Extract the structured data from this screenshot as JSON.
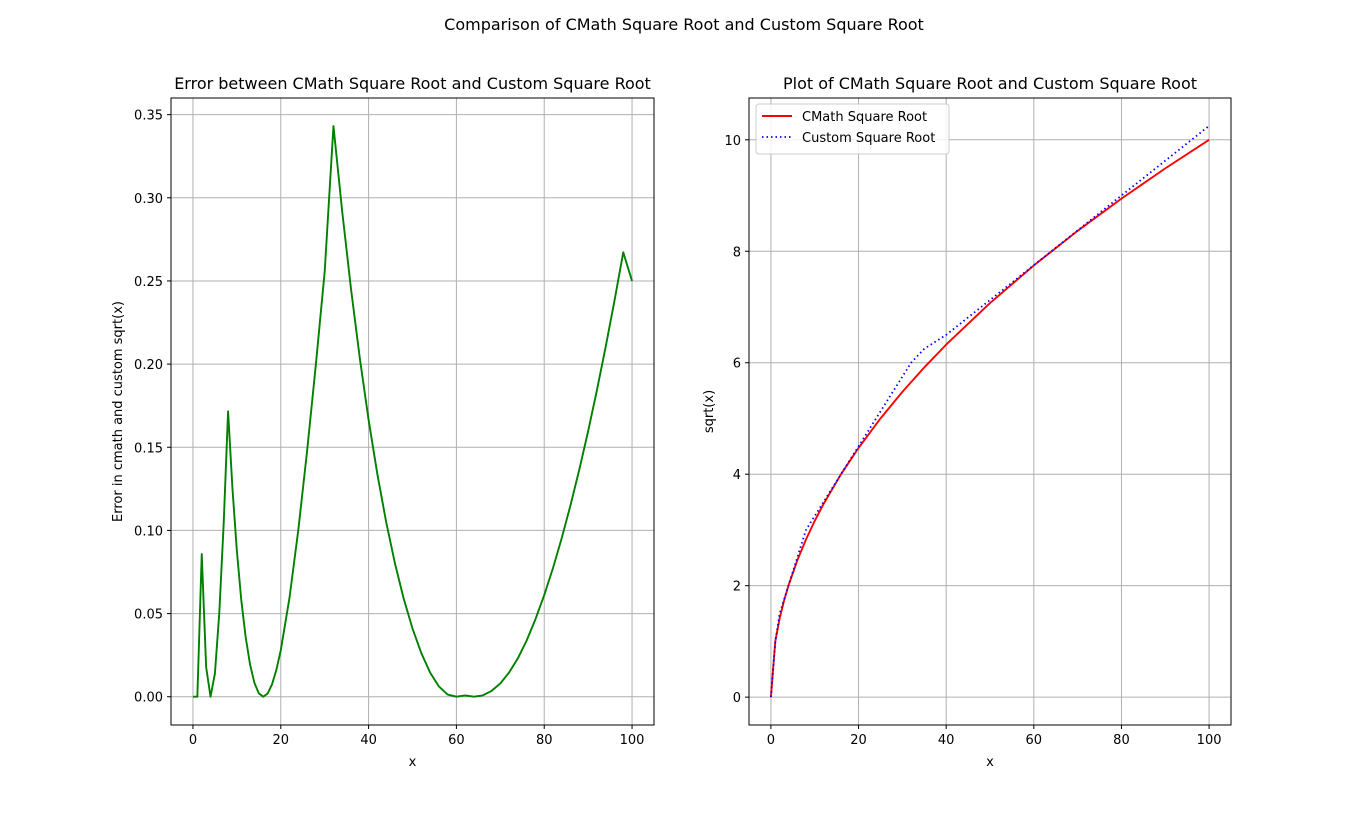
{
  "figure": {
    "suptitle": "Comparison of CMath Square Root and Custom Square Root"
  },
  "chart_data": [
    {
      "type": "line",
      "title": "Error between CMath Square Root and Custom Square Root",
      "xlabel": "x",
      "ylabel": "Error in cmath and custom sqrt(x)",
      "xlim": [
        -5,
        105
      ],
      "ylim": [
        -0.017,
        0.36
      ],
      "xticks": [
        "0",
        "20",
        "40",
        "60",
        "80",
        "100"
      ],
      "xtick_values": [
        0,
        20,
        40,
        60,
        80,
        100
      ],
      "yticks": [
        "0.00",
        "0.05",
        "0.10",
        "0.15",
        "0.20",
        "0.25",
        "0.30",
        "0.35"
      ],
      "ytick_values": [
        0,
        0.05,
        0.1,
        0.15,
        0.2,
        0.25,
        0.3,
        0.35
      ],
      "grid": true,
      "series": [
        {
          "color": "#008000",
          "style": "solid",
          "x": [
            0,
            1,
            2,
            3,
            4,
            5,
            6,
            7,
            8,
            9,
            10,
            11,
            12,
            13,
            14,
            15,
            16,
            17,
            18,
            19,
            20,
            22,
            24,
            26,
            28,
            30,
            32,
            34,
            36,
            38,
            40,
            42,
            44,
            46,
            48,
            50,
            52,
            54,
            56,
            58,
            60,
            62,
            64,
            66,
            68,
            70,
            72,
            74,
            76,
            78,
            80,
            82,
            84,
            86,
            88,
            90,
            92,
            94,
            96,
            98,
            100
          ],
          "y": [
            0,
            0,
            0.0858,
            0.0179,
            0,
            0.0139,
            0.0505,
            0.1042,
            0.1716,
            0.125,
            0.0877,
            0.0583,
            0.0359,
            0.0194,
            0.0083,
            0.002,
            0,
            0.0019,
            0.0074,
            0.0162,
            0.0279,
            0.0597,
            0.1005,
            0.1479,
            0.2,
            0.2555,
            0.3431,
            0.2915,
            0.2451,
            0.2035,
            0.1665,
            0.1338,
            0.1051,
            0.0802,
            0.0589,
            0.041,
            0.0263,
            0.0146,
            0.0062,
            0.0013,
            0.0,
            0.0008,
            0,
            0.0008,
            0.0035,
            0.008,
            0.0146,
            0.0231,
            0.0338,
            0.0466,
            0.0611,
            0.0774,
            0.0955,
            0.1153,
            0.1367,
            0.1597,
            0.1843,
            0.2105,
            0.2381,
            0.2672,
            0.25
          ]
        }
      ]
    },
    {
      "type": "line",
      "title": "Plot of CMath Square Root and Custom Square Root",
      "xlabel": "x",
      "ylabel": "sqrt(x)",
      "xlim": [
        -5,
        105
      ],
      "ylim": [
        -0.5,
        10.75
      ],
      "xticks": [
        "0",
        "20",
        "40",
        "60",
        "80",
        "100"
      ],
      "xtick_values": [
        0,
        20,
        40,
        60,
        80,
        100
      ],
      "yticks": [
        "0",
        "2",
        "4",
        "6",
        "8",
        "10"
      ],
      "ytick_values": [
        0,
        2,
        4,
        6,
        8,
        10
      ],
      "grid": true,
      "legend_position": "top-left",
      "series": [
        {
          "name": "CMath Square Root",
          "color": "#ff0000",
          "style": "solid",
          "x": [
            0,
            1,
            2,
            3,
            4,
            6,
            8,
            10,
            12,
            16,
            20,
            25,
            30,
            35,
            40,
            50,
            60,
            70,
            80,
            90,
            100
          ],
          "y": [
            0,
            1,
            1.414,
            1.732,
            2,
            2.449,
            2.828,
            3.162,
            3.464,
            4,
            4.472,
            5,
            5.477,
            5.916,
            6.325,
            7.071,
            7.746,
            8.367,
            8.944,
            9.487,
            10
          ]
        },
        {
          "name": "Custom Square Root",
          "color": "#0000ff",
          "style": "dotted",
          "x": [
            0,
            1,
            2,
            3,
            4,
            6,
            8,
            10,
            12,
            16,
            20,
            25,
            30,
            32,
            35,
            40,
            50,
            60,
            64,
            70,
            80,
            90,
            100
          ],
          "y": [
            0,
            1,
            1.5,
            1.75,
            2,
            2.5,
            3,
            3.25,
            3.5,
            4,
            4.5,
            5.125,
            5.75,
            6,
            6.25,
            6.5,
            7.125,
            7.75,
            8,
            8.375,
            9,
            9.625,
            10.25
          ]
        }
      ]
    }
  ]
}
